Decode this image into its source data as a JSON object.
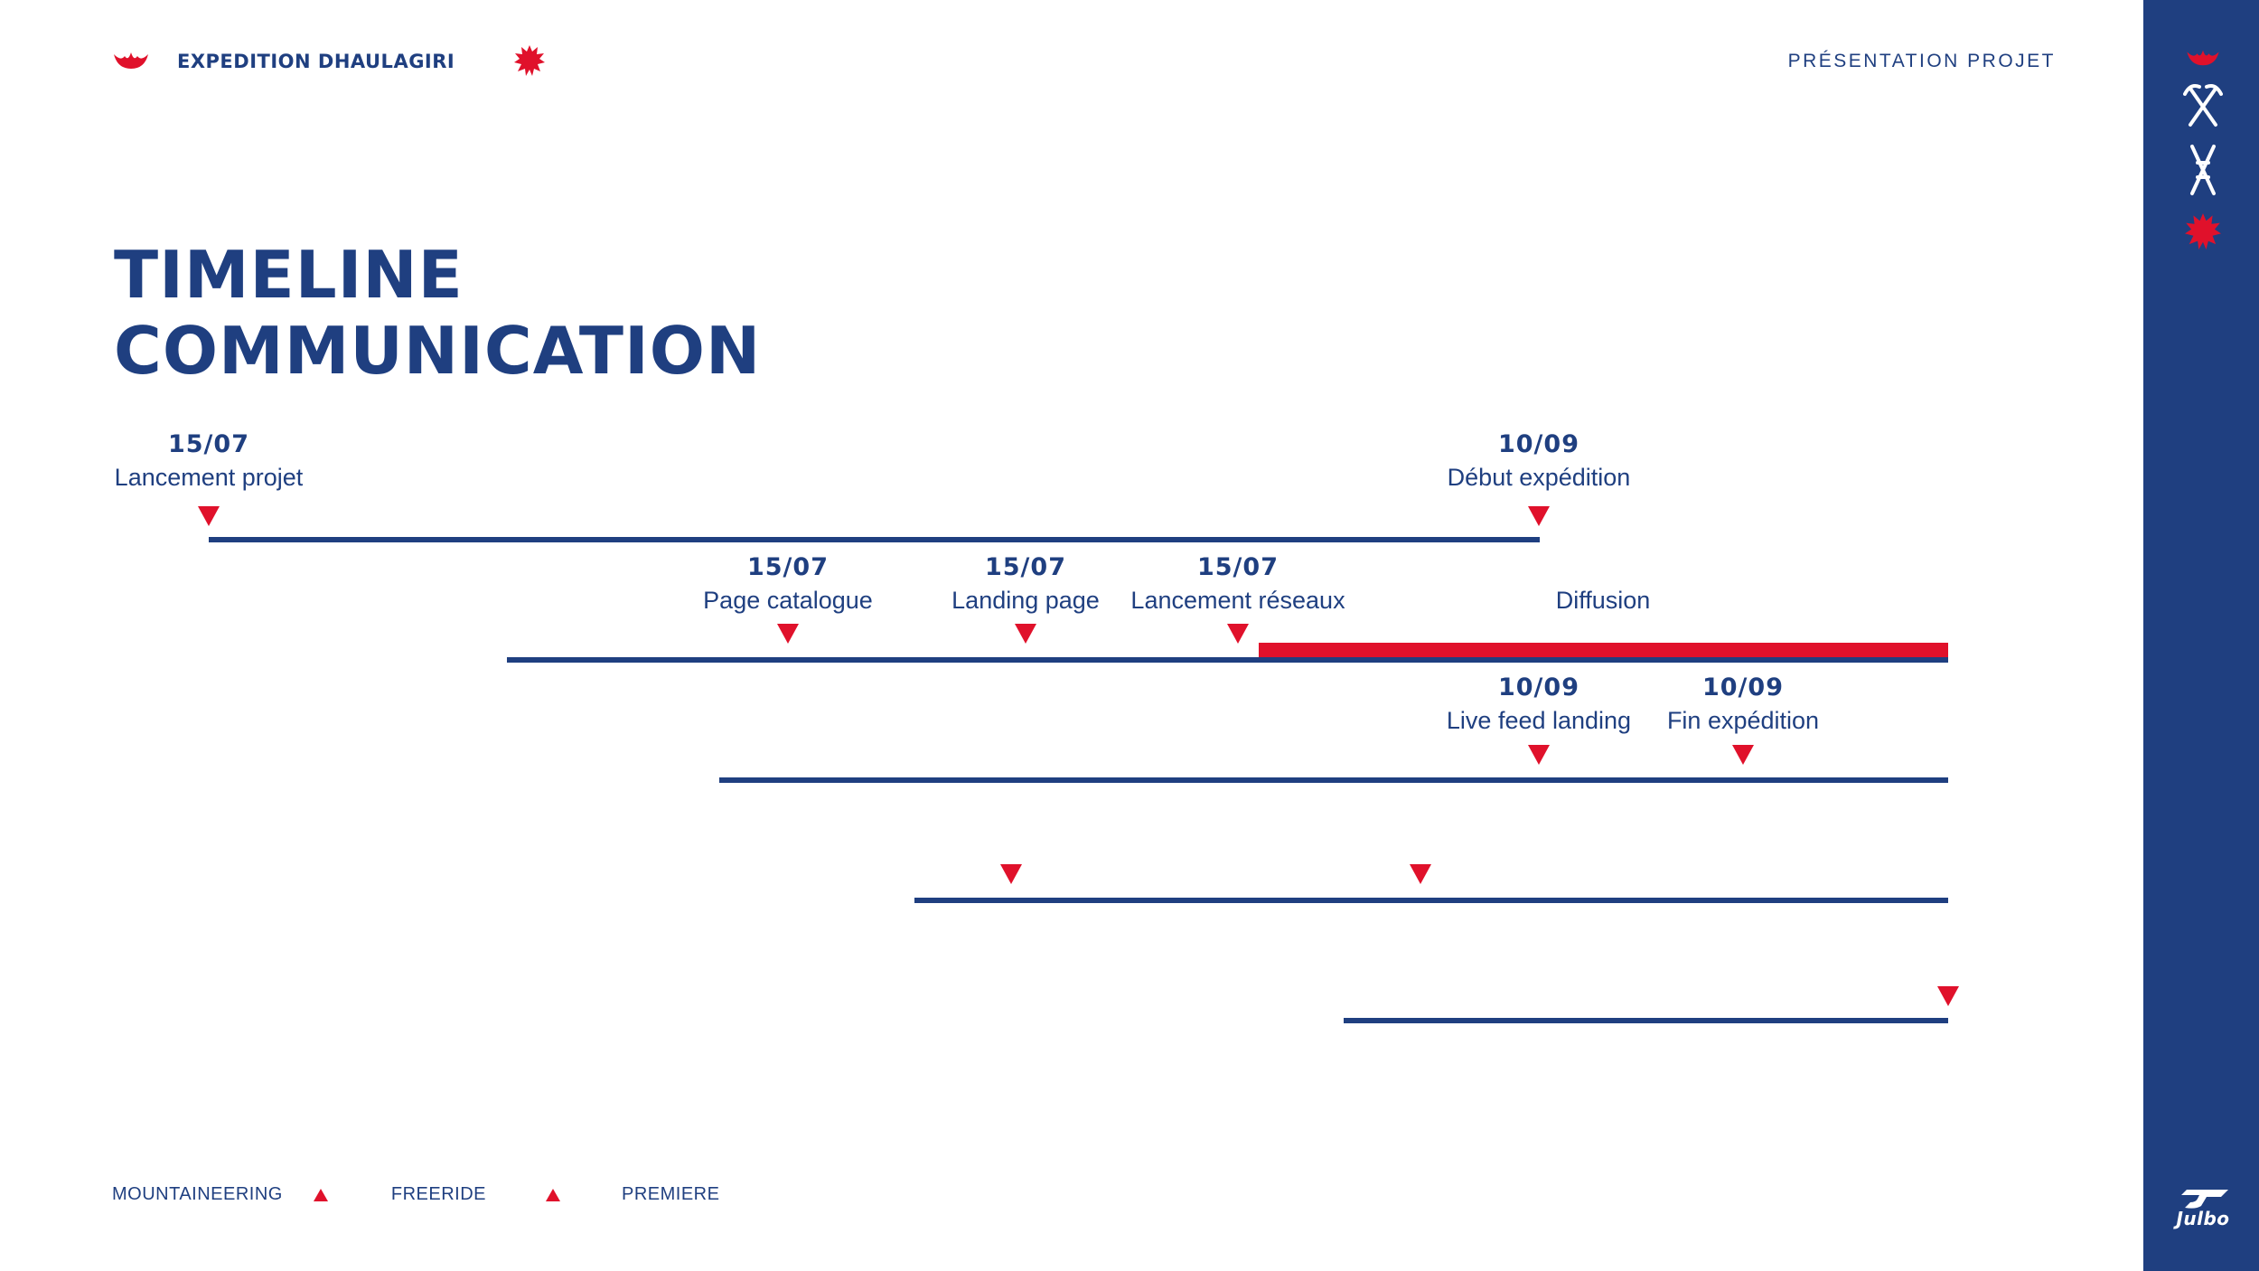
{
  "header": {
    "brand": "EXPEDITION DHAULAGIRI",
    "section": "PRÉSENTATION PROJET"
  },
  "title": {
    "line1": "TIMELINE",
    "line2": "COMMUNICATION"
  },
  "events": [
    {
      "date": "15/07",
      "label": "Lancement projet"
    },
    {
      "date": "10/09",
      "label": "Début expédition"
    },
    {
      "date": "15/07",
      "label": "Page catalogue"
    },
    {
      "date": "15/07",
      "label": "Landing page"
    },
    {
      "date": "15/07",
      "label": "Lancement réseaux"
    },
    {
      "date": "",
      "label": "Diffusion"
    },
    {
      "date": "10/09",
      "label": "Live feed landing"
    },
    {
      "date": "10/09",
      "label": "Fin expédition"
    }
  ],
  "legend": {
    "items": [
      "MOUNTAINEERING",
      "FREERIDE",
      "PREMIERE"
    ]
  },
  "sidebar": {
    "icons": [
      "flower-icon",
      "crossed-ice-axes-icon",
      "crossed-skis-icon",
      "star-burst-icon"
    ],
    "logo": "Julbo"
  },
  "colors": {
    "navy": "#1f3f80",
    "red": "#e0112b",
    "background": "#ffffff"
  }
}
